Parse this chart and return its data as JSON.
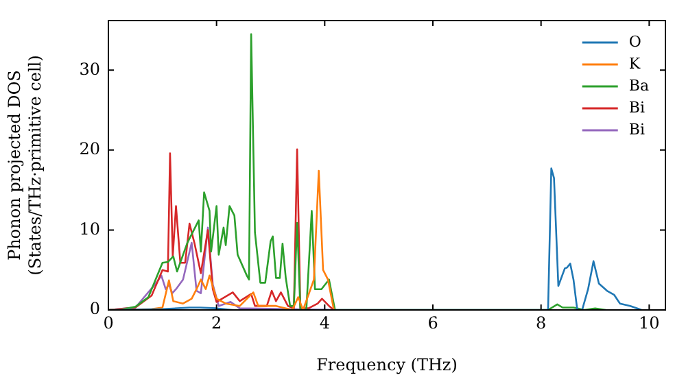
{
  "chart_data": {
    "type": "line",
    "xlabel": "Frequency (THz)",
    "ylabel": "Phonon projected DOS\n(States/THz·primitive cell)",
    "xlim": [
      0,
      10.3
    ],
    "ylim": [
      0,
      36.2
    ],
    "xticks": [
      0,
      2,
      4,
      6,
      8,
      10
    ],
    "yticks": [
      0,
      10,
      20,
      30
    ],
    "grid": false,
    "legend": "top right",
    "marker": "none",
    "line_style": "solid",
    "series": [
      {
        "name": "O",
        "color": "#1f77b4",
        "x": [
          0,
          1.0,
          1.5,
          1.7,
          2.0,
          2.3,
          4.2,
          8.13,
          8.19,
          8.24,
          8.32,
          8.44,
          8.48,
          8.54,
          8.6,
          8.67,
          8.76,
          8.87,
          8.97,
          9.07,
          9.22,
          9.35,
          9.46,
          9.65,
          9.86
        ],
        "values": [
          0,
          0.1,
          0.3,
          0.3,
          0.2,
          0,
          0,
          0,
          17.7,
          16.5,
          3.0,
          5.2,
          5.3,
          5.8,
          3.8,
          0,
          0,
          2.6,
          6.1,
          3.3,
          2.4,
          1.9,
          0.8,
          0.5,
          0
        ]
      },
      {
        "name": "K",
        "color": "#ff7f0e",
        "x": [
          0,
          0.8,
          1.0,
          1.12,
          1.2,
          1.38,
          1.54,
          1.63,
          1.71,
          1.8,
          1.87,
          2.0,
          2.17,
          2.43,
          2.68,
          2.77,
          3.1,
          3.4,
          3.51,
          3.6,
          3.8,
          3.89,
          3.97,
          4.06,
          4.17
        ],
        "values": [
          0,
          0.1,
          0.3,
          3.7,
          1.1,
          0.8,
          1.4,
          2.6,
          3.8,
          2.6,
          4.3,
          1.4,
          0.8,
          0.5,
          2.2,
          0.5,
          0.5,
          0,
          1.6,
          0,
          3.8,
          17.4,
          5.0,
          3.8,
          0
        ]
      },
      {
        "name": "Ba",
        "color": "#2ca02c",
        "x": [
          0,
          0.2,
          0.5,
          0.74,
          1.0,
          1.1,
          1.2,
          1.27,
          1.46,
          1.67,
          1.71,
          1.77,
          1.87,
          1.9,
          2.0,
          2.04,
          2.13,
          2.17,
          2.24,
          2.33,
          2.39,
          2.56,
          2.6,
          2.64,
          2.71,
          2.81,
          2.9,
          3.0,
          3.04,
          3.1,
          3.17,
          3.22,
          3.28,
          3.36,
          3.43,
          3.49,
          3.55,
          3.66,
          3.76,
          3.82,
          3.94,
          4.08,
          4.19,
          8.13,
          8.3,
          8.4,
          8.6,
          8.8,
          9.0,
          9.2
        ],
        "values": [
          0,
          0,
          0.4,
          1.6,
          5.9,
          6.0,
          6.7,
          4.8,
          8.4,
          11.2,
          7.3,
          14.7,
          12.4,
          7.3,
          13.0,
          6.9,
          10.3,
          8.1,
          13.0,
          11.8,
          6.9,
          4.3,
          3.8,
          34.5,
          9.7,
          3.4,
          3.4,
          8.6,
          9.2,
          4.0,
          4.0,
          8.3,
          4.0,
          0.5,
          0.5,
          10.9,
          0,
          0,
          12.4,
          2.6,
          2.6,
          3.8,
          0,
          0,
          0.7,
          0.3,
          0.3,
          0,
          0.2,
          0
        ]
      },
      {
        "name": "Bi",
        "color": "#d62728",
        "x": [
          0,
          0.5,
          0.8,
          1.0,
          1.1,
          1.14,
          1.19,
          1.25,
          1.33,
          1.42,
          1.5,
          1.59,
          1.71,
          1.84,
          1.93,
          2.0,
          2.3,
          2.43,
          2.64,
          2.71,
          2.93,
          3.02,
          3.1,
          3.19,
          3.32,
          3.43,
          3.49,
          3.55,
          3.7,
          3.87,
          3.95,
          4.08,
          4.17
        ],
        "values": [
          0,
          0.3,
          1.8,
          5.0,
          4.8,
          19.6,
          6.7,
          13.0,
          5.9,
          5.9,
          10.8,
          8.4,
          4.6,
          10.0,
          2.6,
          1.0,
          2.2,
          1.1,
          2.0,
          0.5,
          0.5,
          2.4,
          1.1,
          2.2,
          0.5,
          0.2,
          20.1,
          0.2,
          0.2,
          0.8,
          1.4,
          0.5,
          0
        ]
      },
      {
        "name": "Bi",
        "color": "#9467bd",
        "x": [
          0,
          0.5,
          0.9,
          0.98,
          1.06,
          1.12,
          1.18,
          1.25,
          1.38,
          1.54,
          1.63,
          1.71,
          1.84,
          1.93,
          2.04,
          2.26,
          2.43,
          4.2
        ],
        "values": [
          0,
          0.3,
          3.5,
          4.3,
          2.6,
          3.2,
          2.1,
          2.6,
          3.8,
          8.4,
          2.4,
          2.1,
          10.3,
          3.2,
          0.5,
          1.0,
          0.2,
          0
        ]
      }
    ]
  }
}
